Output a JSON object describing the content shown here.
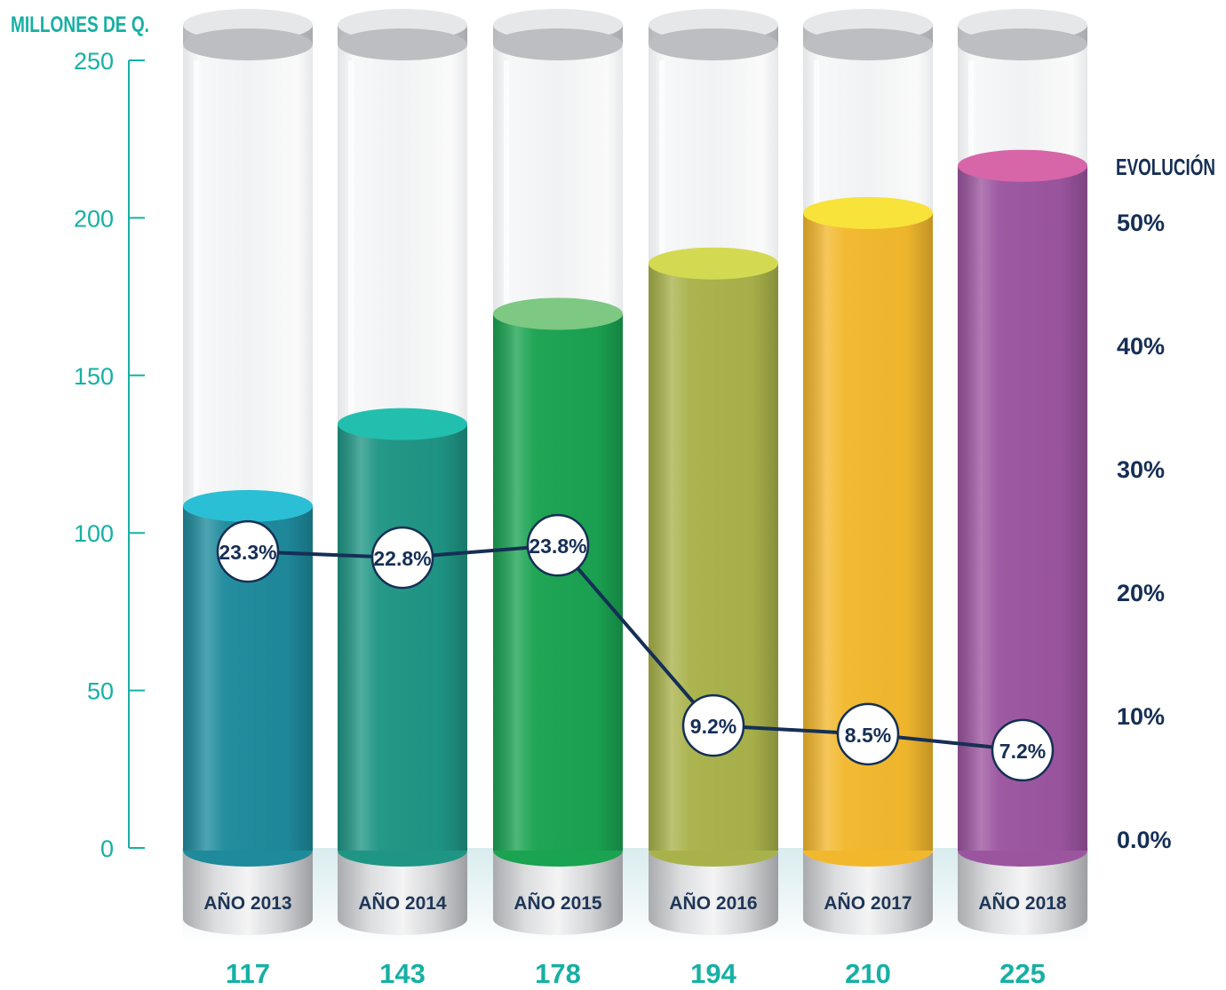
{
  "chart_data": {
    "type": "bar",
    "left_axis_title": "MILLONES DE Q.",
    "right_axis_title": "EVOLUCIÓN",
    "left_ticks": [
      "0",
      "50",
      "100",
      "150",
      "200",
      "250"
    ],
    "right_ticks": [
      "0.0%",
      "10%",
      "20%",
      "30%",
      "40%",
      "50%"
    ],
    "ylim_left": [
      0,
      250
    ],
    "ylim_right": [
      0,
      50
    ],
    "categories": [
      "AÑO 2013",
      "AÑO 2014",
      "AÑO 2015",
      "AÑO 2016",
      "AÑO 2017",
      "AÑO 2018"
    ],
    "values": [
      117,
      143,
      178,
      194,
      210,
      225
    ],
    "value_labels": [
      "117",
      "143",
      "178",
      "194",
      "210",
      "225"
    ],
    "growth": [
      23.3,
      22.8,
      23.8,
      9.2,
      8.5,
      7.2
    ],
    "growth_labels": [
      "23.3%",
      "22.8%",
      "23.8%",
      "9.2%",
      "8.5%",
      "7.2%"
    ],
    "colors": {
      "bars": [
        "#1e8a9c",
        "#1f9585",
        "#1aa351",
        "#a9b24a",
        "#f2b82d",
        "#9b559f"
      ],
      "bar_tops": [
        "#2bbfd6",
        "#22bfae",
        "#7dc882",
        "#d3da52",
        "#f7e33a",
        "#d766a8"
      ],
      "left_axis": "#16b0a4",
      "right_axis": "#152f55",
      "line": "#152f55",
      "value_labels": "#16b0a4"
    },
    "grid": false
  }
}
